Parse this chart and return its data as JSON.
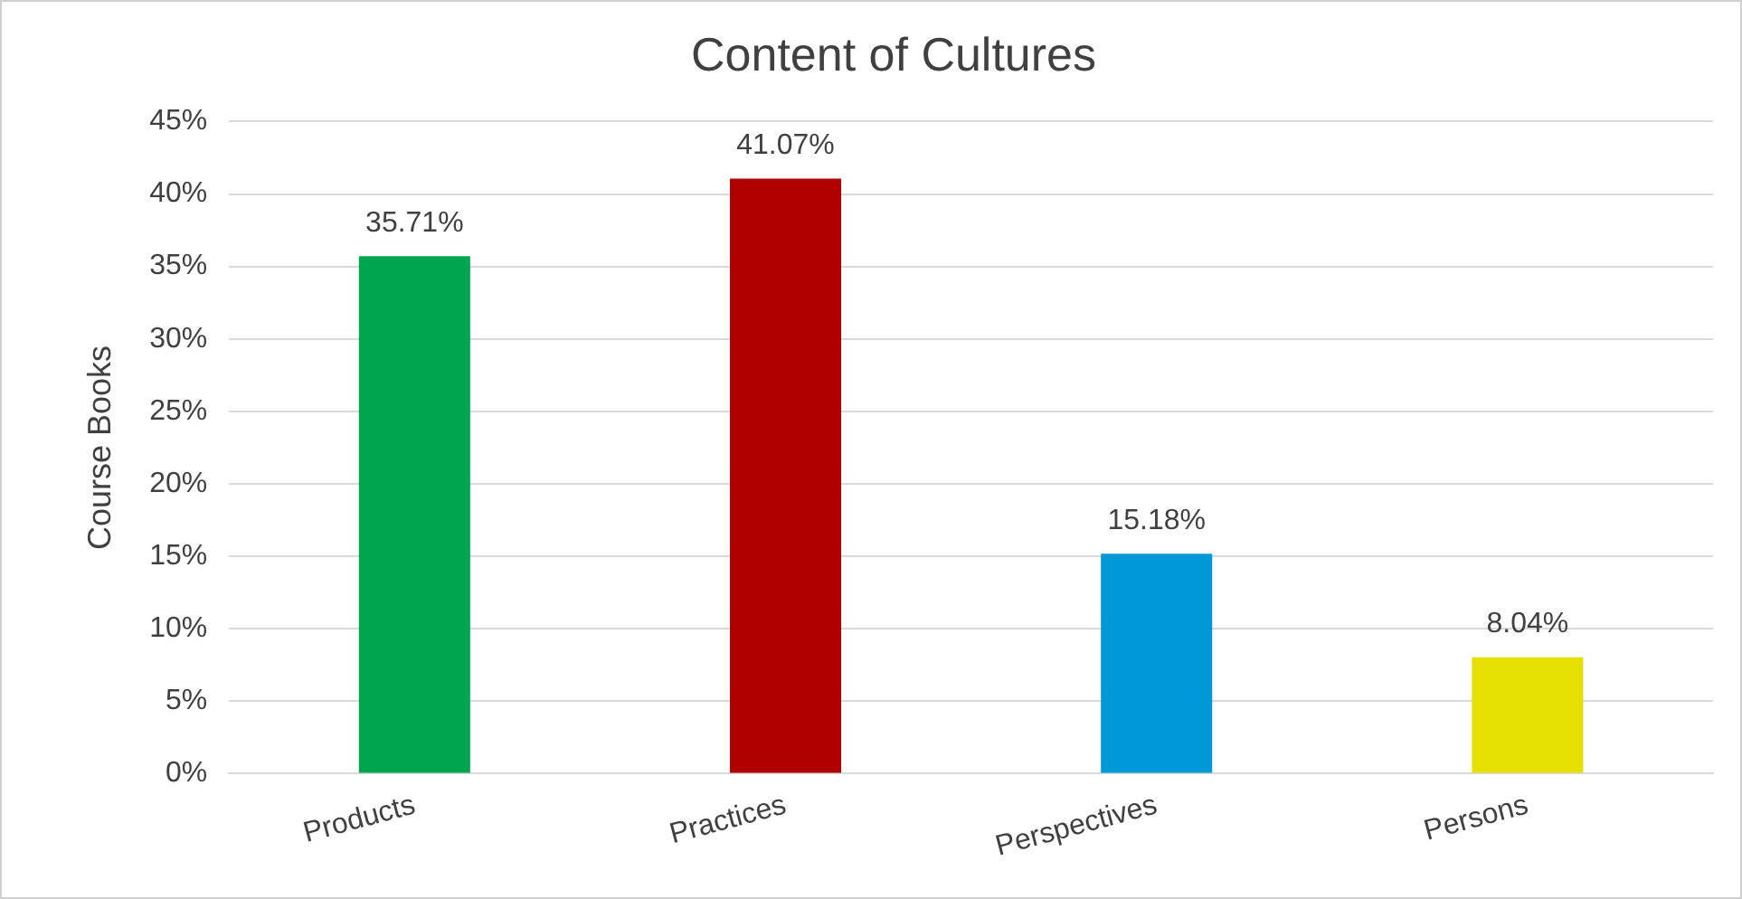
{
  "chart_data": {
    "type": "bar",
    "title": "Content of Cultures",
    "ylabel": "Course Books",
    "categories": [
      "Products",
      "Practices",
      "Perspectives",
      "Persons"
    ],
    "values": [
      35.71,
      41.07,
      15.18,
      8.04
    ],
    "colors": [
      "#00a64f",
      "#b00000",
      "#0098d6",
      "#e6e000"
    ],
    "value_labels": [
      "35.71%",
      "41.07%",
      "15.18%",
      "8.04%"
    ],
    "ylim": [
      0,
      45
    ],
    "yticks": [
      {
        "value": 0,
        "label": "0%"
      },
      {
        "value": 5,
        "label": "5%"
      },
      {
        "value": 10,
        "label": "10%"
      },
      {
        "value": 15,
        "label": "15%"
      },
      {
        "value": 20,
        "label": "20%"
      },
      {
        "value": 25,
        "label": "25%"
      },
      {
        "value": 30,
        "label": "30%"
      },
      {
        "value": 35,
        "label": "35%"
      },
      {
        "value": 40,
        "label": "40%"
      },
      {
        "value": 45,
        "label": "45%"
      }
    ],
    "grid": "y",
    "legend": false
  }
}
